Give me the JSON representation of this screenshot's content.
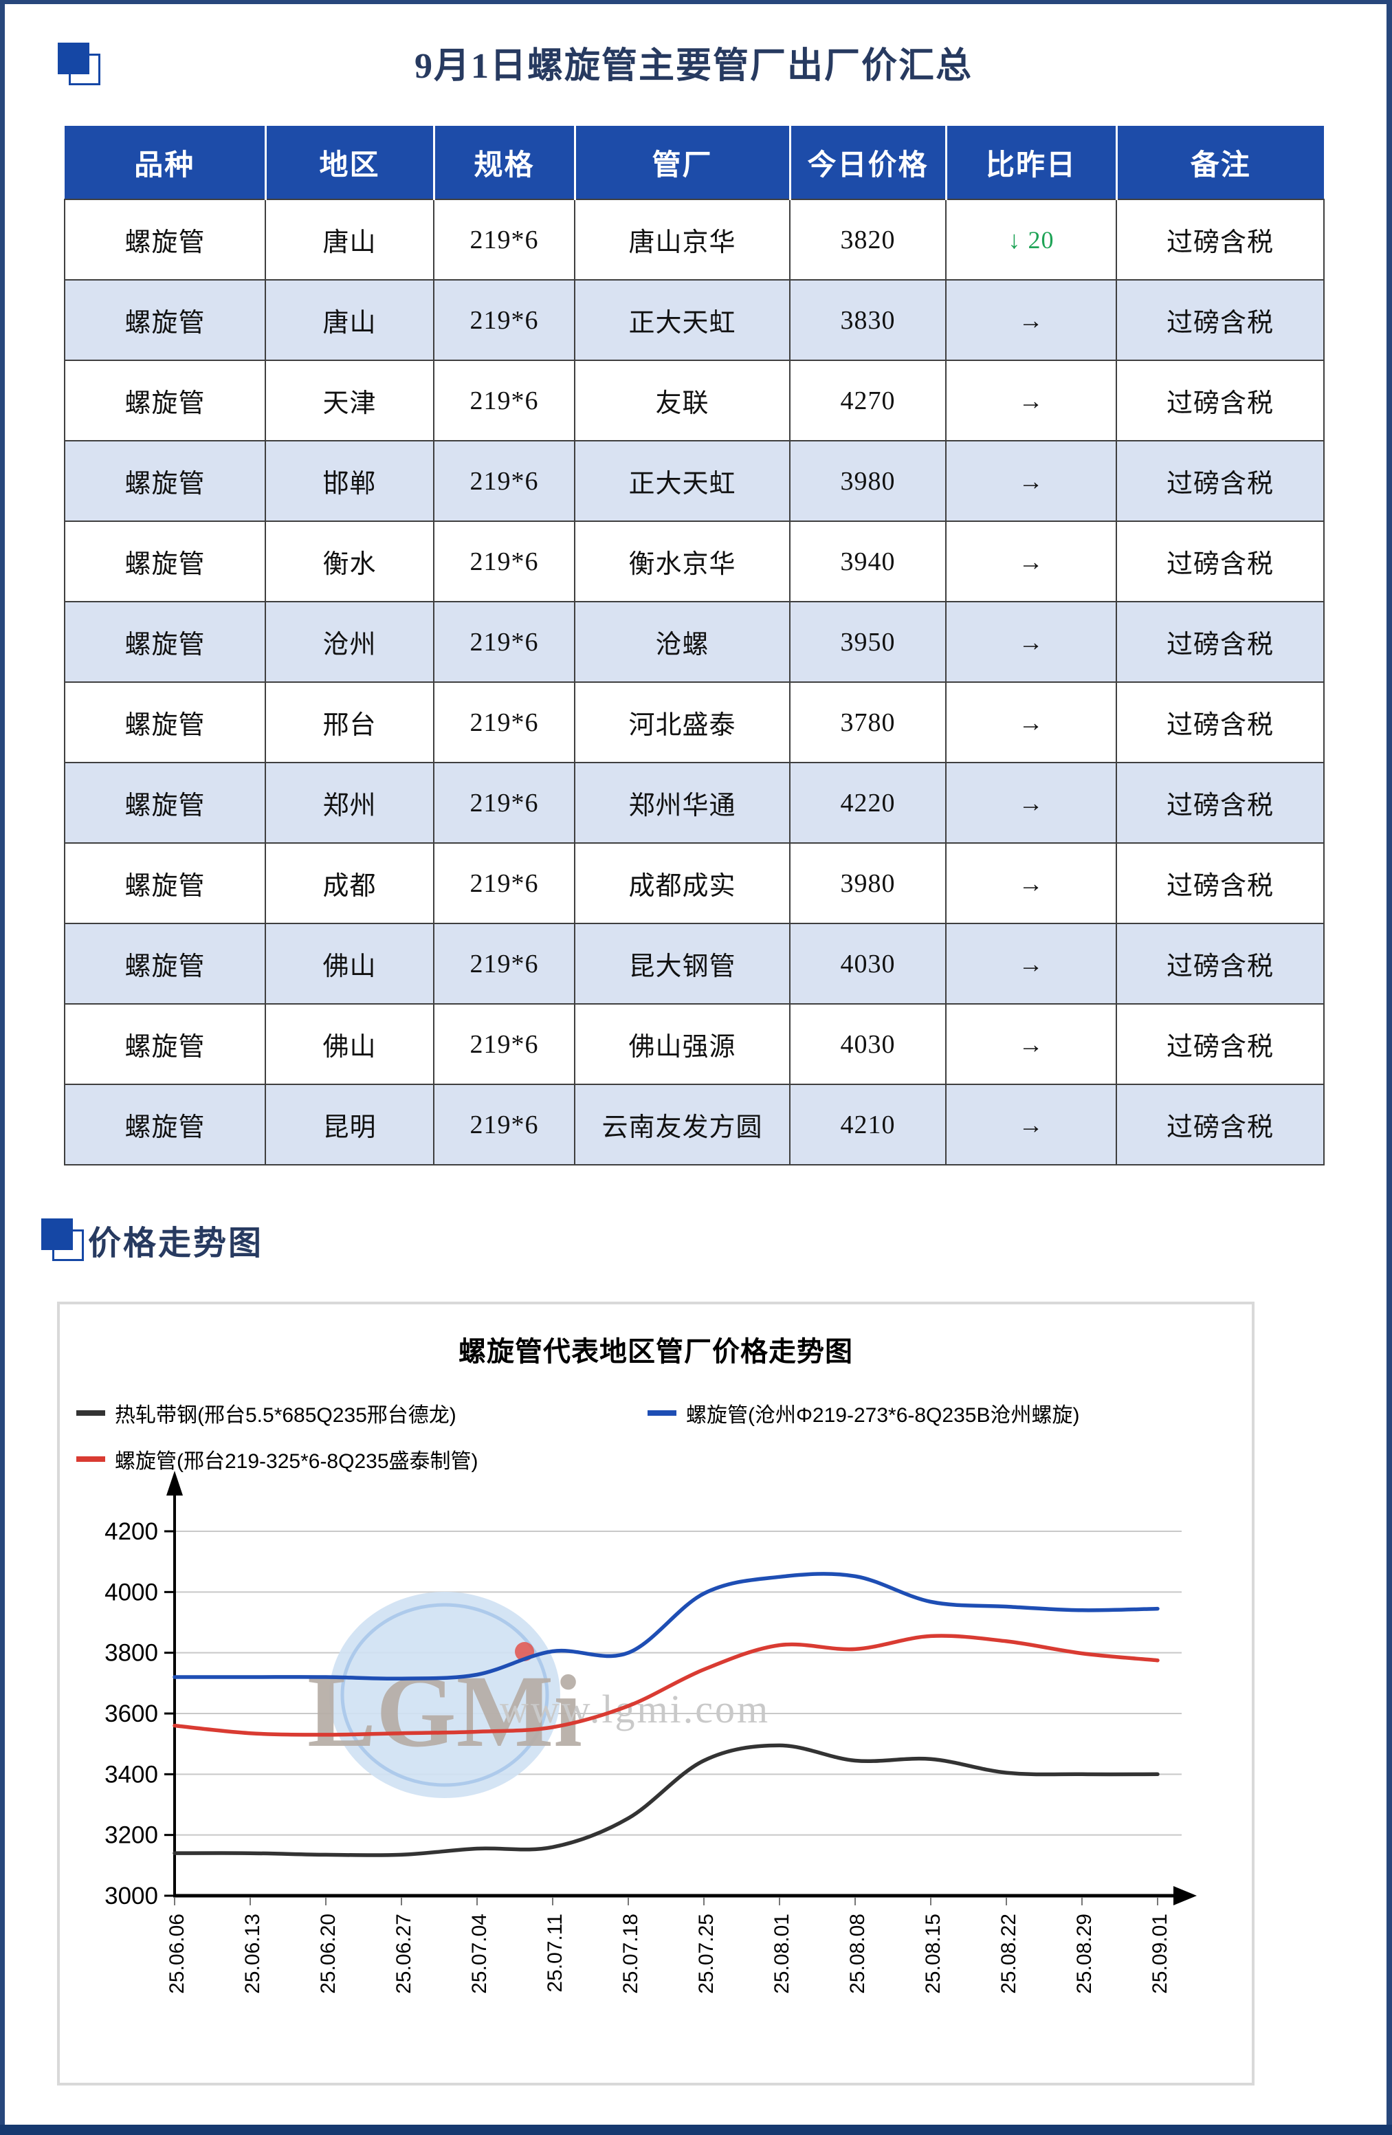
{
  "page": {
    "title": "9月1日螺旋管主要管厂出厂价汇总",
    "section2_title": "价格走势图"
  },
  "colors": {
    "header_bg": "#1d4ca9",
    "row_alt_bg": "#d9e2f2",
    "accent_blue": "#1547a5",
    "accent_navy": "#273a60",
    "down_green": "#1ea356",
    "border_navy": "#27477c",
    "strip_navy": "#16396f",
    "grid_gray": "#c8c8c8"
  },
  "table": {
    "columns": [
      "品种",
      "地区",
      "规格",
      "管厂",
      "今日价格",
      "比昨日",
      "备注"
    ],
    "rows": [
      {
        "variety": "螺旋管",
        "region": "唐山",
        "spec": "219*6",
        "factory": "唐山京华",
        "price": "3820",
        "change": "↓ 20",
        "change_type": "down",
        "note": "过磅含税"
      },
      {
        "variety": "螺旋管",
        "region": "唐山",
        "spec": "219*6",
        "factory": "正大天虹",
        "price": "3830",
        "change": "→",
        "change_type": "flat",
        "note": "过磅含税"
      },
      {
        "variety": "螺旋管",
        "region": "天津",
        "spec": "219*6",
        "factory": "友联",
        "price": "4270",
        "change": "→",
        "change_type": "flat",
        "note": "过磅含税"
      },
      {
        "variety": "螺旋管",
        "region": "邯郸",
        "spec": "219*6",
        "factory": "正大天虹",
        "price": "3980",
        "change": "→",
        "change_type": "flat",
        "note": "过磅含税"
      },
      {
        "variety": "螺旋管",
        "region": "衡水",
        "spec": "219*6",
        "factory": "衡水京华",
        "price": "3940",
        "change": "→",
        "change_type": "flat",
        "note": "过磅含税"
      },
      {
        "variety": "螺旋管",
        "region": "沧州",
        "spec": "219*6",
        "factory": "沧螺",
        "price": "3950",
        "change": "→",
        "change_type": "flat",
        "note": "过磅含税"
      },
      {
        "variety": "螺旋管",
        "region": "邢台",
        "spec": "219*6",
        "factory": "河北盛泰",
        "price": "3780",
        "change": "→",
        "change_type": "flat",
        "note": "过磅含税"
      },
      {
        "variety": "螺旋管",
        "region": "郑州",
        "spec": "219*6",
        "factory": "郑州华通",
        "price": "4220",
        "change": "→",
        "change_type": "flat",
        "note": "过磅含税"
      },
      {
        "variety": "螺旋管",
        "region": "成都",
        "spec": "219*6",
        "factory": "成都成实",
        "price": "3980",
        "change": "→",
        "change_type": "flat",
        "note": "过磅含税"
      },
      {
        "variety": "螺旋管",
        "region": "佛山",
        "spec": "219*6",
        "factory": "昆大钢管",
        "price": "4030",
        "change": "→",
        "change_type": "flat",
        "note": "过磅含税"
      },
      {
        "variety": "螺旋管",
        "region": "佛山",
        "spec": "219*6",
        "factory": "佛山强源",
        "price": "4030",
        "change": "→",
        "change_type": "flat",
        "note": "过磅含税"
      },
      {
        "variety": "螺旋管",
        "region": "昆明",
        "spec": "219*6",
        "factory": "云南友发方圆",
        "price": "4210",
        "change": "→",
        "change_type": "flat",
        "note": "过磅含税"
      }
    ]
  },
  "chart": {
    "watermark_logo": "LGMi",
    "watermark_url": "www.lgmi.com"
  },
  "chart_data": {
    "type": "line",
    "title": "螺旋管代表地区管厂价格走势图",
    "categories": [
      "25.06.06",
      "25.06.13",
      "25.06.20",
      "25.06.27",
      "25.07.04",
      "25.07.11",
      "25.07.18",
      "25.07.25",
      "25.08.01",
      "25.08.08",
      "25.08.15",
      "25.08.22",
      "25.08.29",
      "25.09.01"
    ],
    "series": [
      {
        "name": "热轧带钢(邢台5.5*685Q235邢台德龙)",
        "color": "#333333",
        "values": [
          3140,
          3140,
          3135,
          3135,
          3155,
          3160,
          3255,
          3445,
          3495,
          3445,
          3450,
          3405,
          3400,
          3400
        ]
      },
      {
        "name": "螺旋管(邢台219-325*6-8Q235盛泰制管)",
        "color": "#d93b32",
        "values": [
          3560,
          3535,
          3530,
          3535,
          3540,
          3555,
          3625,
          3745,
          3825,
          3812,
          3855,
          3838,
          3798,
          3775
        ]
      },
      {
        "name": "螺旋管(沧州Φ219-273*6-8Q235B沧州螺旋)",
        "color": "#1e4eb4",
        "values": [
          3720,
          3720,
          3720,
          3715,
          3728,
          3805,
          3800,
          3995,
          4050,
          4052,
          3968,
          3952,
          3940,
          3945
        ]
      }
    ],
    "ylim": [
      3000,
      4300
    ],
    "yticks": [
      3000,
      3200,
      3400,
      3600,
      3800,
      4000,
      4200
    ],
    "grid": true,
    "legend_position": "top",
    "legend_rows": [
      [
        0,
        2
      ],
      [
        1
      ]
    ]
  }
}
